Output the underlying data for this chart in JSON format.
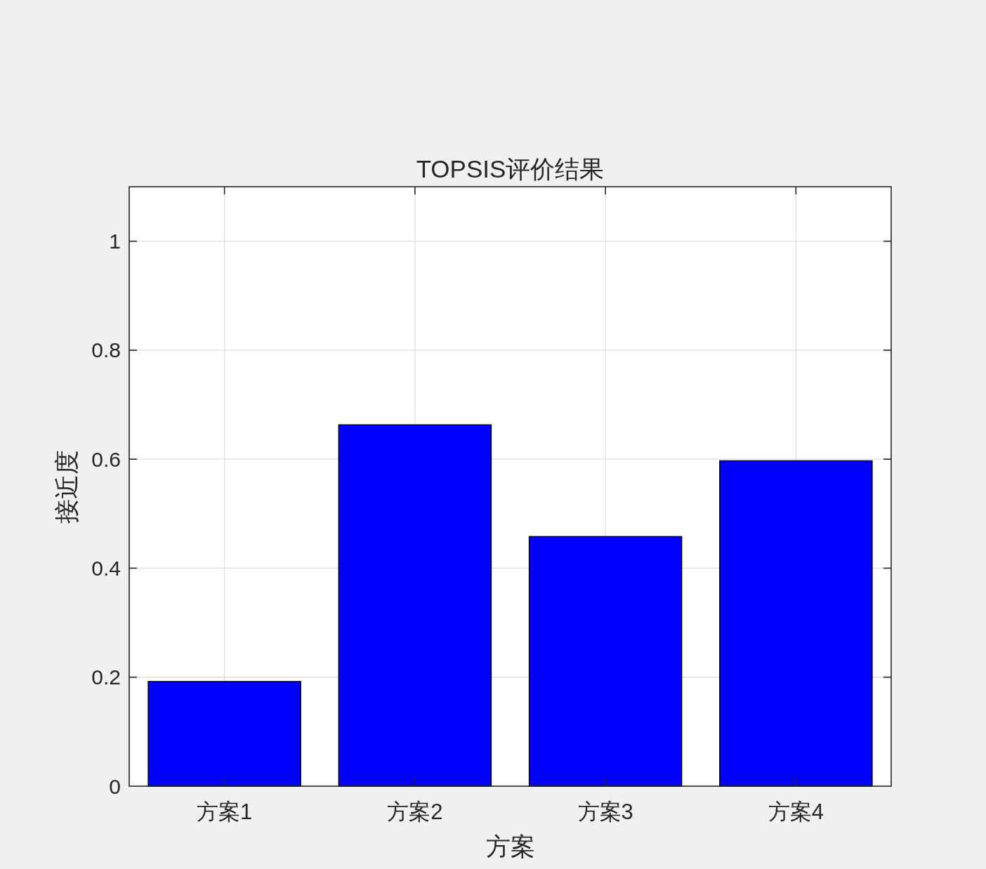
{
  "chart_data": {
    "type": "bar",
    "title": "TOPSIS评价结果",
    "xlabel": "方案",
    "ylabel": "接近度",
    "categories": [
      "方案1",
      "方案2",
      "方案3",
      "方案4"
    ],
    "values": [
      0.192,
      0.663,
      0.458,
      0.597
    ],
    "color": "#0000ff",
    "ylim": [
      0,
      1.1
    ],
    "yticks": [
      0,
      0.2,
      0.4,
      0.6,
      0.8,
      1
    ],
    "grid": true
  }
}
